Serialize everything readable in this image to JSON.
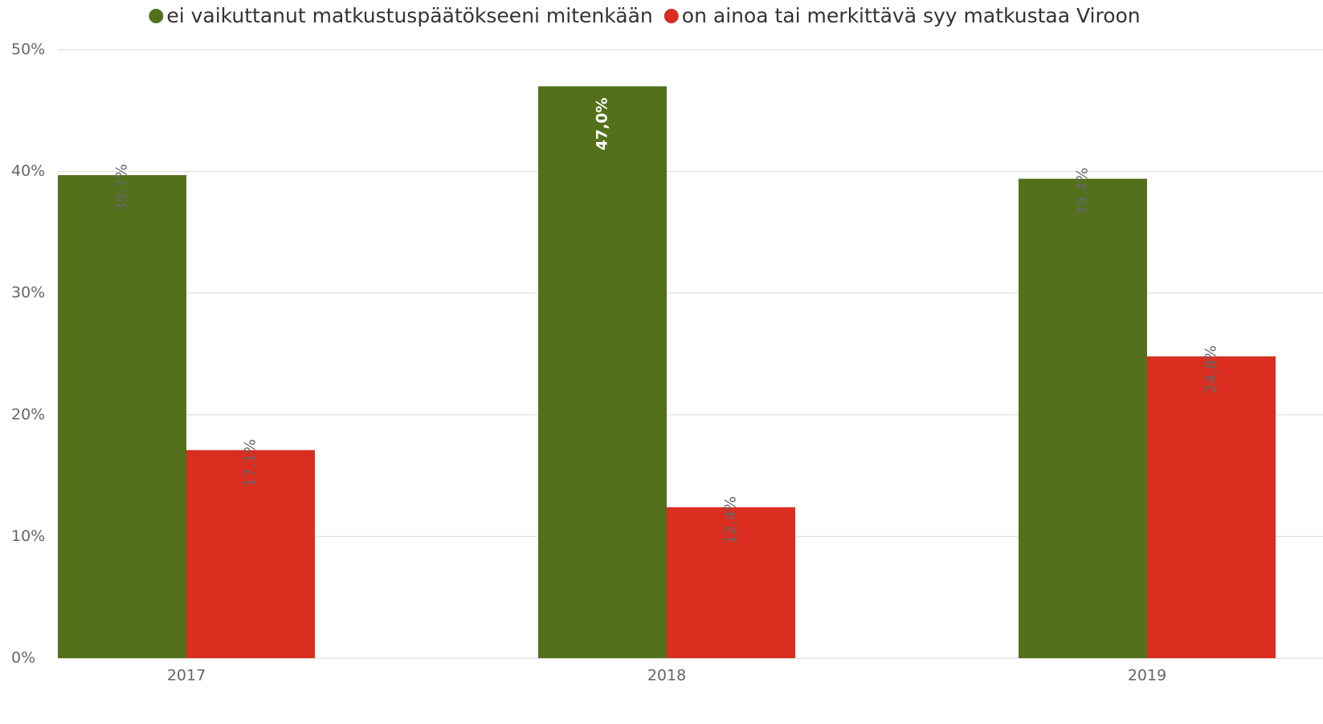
{
  "chart_data": {
    "type": "bar",
    "categories": [
      "2017",
      "2018",
      "2019"
    ],
    "series": [
      {
        "name": "ei vaikuttanut matkustuspäätökseeni mitenkään",
        "color": "#52711a",
        "values": [
          39.7,
          47.0,
          39.4
        ],
        "value_labels": [
          "39,7%",
          "47,0%",
          "39,4%"
        ]
      },
      {
        "name": "on ainoa tai merkittävä syy matkustaa Viroon",
        "color": "#d92e20",
        "values": [
          17.1,
          12.4,
          24.8
        ],
        "value_labels": [
          "17,1%",
          "12,4%",
          "24,8%"
        ]
      }
    ],
    "ylim": [
      0,
      50
    ],
    "yticks": [
      {
        "value": 0,
        "label": "0%"
      },
      {
        "value": 10,
        "label": "10%"
      },
      {
        "value": 20,
        "label": "20%"
      },
      {
        "value": 30,
        "label": "30%"
      },
      {
        "value": 40,
        "label": "40%"
      },
      {
        "value": 50,
        "label": "50%"
      }
    ],
    "grid": true,
    "legend": "top"
  }
}
